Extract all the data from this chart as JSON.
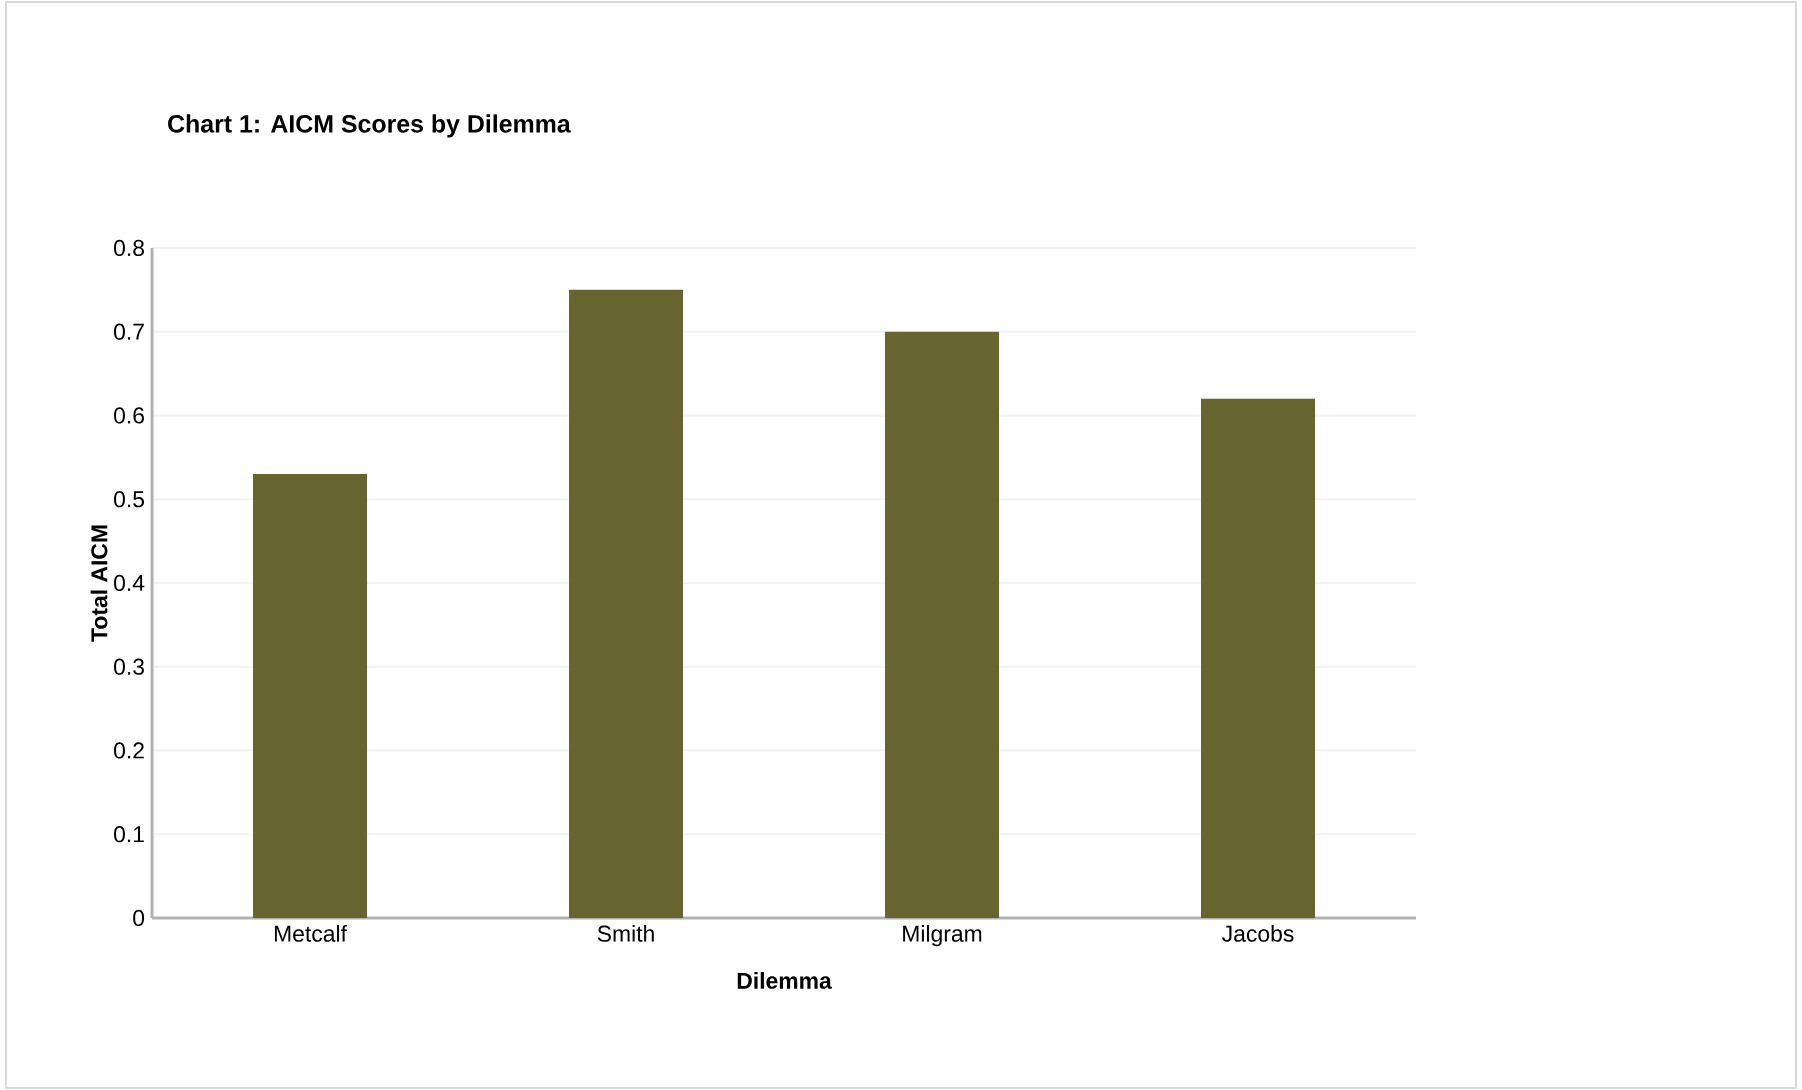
{
  "chart_data": {
    "type": "bar",
    "title": "Chart 1: AICM Scores by Dilemma",
    "xlabel": "Dilemma",
    "ylabel": "Total AICM",
    "categories": [
      "Metcalf",
      "Smith",
      "Milgram",
      "Jacobs"
    ],
    "values": [
      0.53,
      0.75,
      0.7,
      0.62
    ],
    "color": "#676430",
    "ylim": [
      0,
      0.8
    ],
    "yticks": [
      0,
      0.1,
      0.2,
      0.3,
      0.4,
      0.5,
      0.6,
      0.7,
      0.8
    ],
    "grid": "y"
  }
}
